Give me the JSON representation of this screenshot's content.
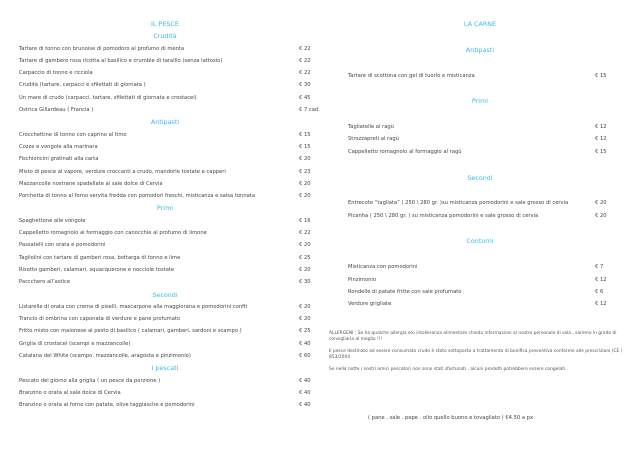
{
  "left": {
    "title": "IL PESCE",
    "sections": [
      {
        "heading": "Crudità",
        "items": [
          {
            "name": "Tartare di tonno con brunoise di pomodoro al profumo di menta",
            "price": "€ 22"
          },
          {
            "name": "Tartare di gambero rosa ricotta al basilico e crumble di taralllo (senza lattosio)",
            "price": "€ 22"
          },
          {
            "name": "Carpaccio di tonno e ricciola",
            "price": "€ 22"
          },
          {
            "name": "Crudità (tartare, carpacci e sfilettati di giornata )",
            "price": "€ 30"
          },
          {
            "name": "Un mare di crudo (carpacci, tartare, sfilettati di giornata e crostacei)",
            "price": "€ 45"
          },
          {
            "name": "Ostrica  Gillardeau ( Francia )",
            "price": "€ 7 cad."
          }
        ]
      },
      {
        "heading": "Antipasti",
        "items": [
          {
            "name": "Crocchettine di tonno con caprino al timo",
            "price": "€ 15"
          },
          {
            "name": "Cozze e vongole alla marinara",
            "price": "€ 15"
          },
          {
            "name": "Fischioncini gratinati alla carta",
            "price": "€ 20"
          },
          {
            "name": "Misto di pesce al vapore, verdure croccanti a crudo, mandorle tostate e capperi",
            "price": "€ 23"
          },
          {
            "name": "Mazzancolle nostrane spadellate al sale dolce di Cervia",
            "price": "€ 20"
          },
          {
            "name": "Porchetta di tonno al forno servita fredda con pomodori freschi, misticanza e salsa tonnata",
            "price": "€ 20"
          }
        ]
      },
      {
        "heading": "Primi",
        "items": [
          {
            "name": "Spaghettone alle vongole",
            "price": "€ 16"
          },
          {
            "name": "Cappelletto romagnolo al formaggio con canocchie al profumo di limone",
            "price": "€ 22"
          },
          {
            "name": "Passatelli con orata e pomodorini",
            "price": "€ 20"
          },
          {
            "name": "Tagliolini con tartare di gamberi rosa, bottarga di tonno e lime",
            "price": "€ 25"
          },
          {
            "name": "Risotto gamberi, calamari, squacquerone e nocciole tostate",
            "price": "€ 20"
          },
          {
            "name": "Paccchero all’astice",
            "price": "€ 30"
          }
        ]
      },
      {
        "heading": "Secondi",
        "items": [
          {
            "name": "Listarelle di orata con crema di piselli, mascarpone alla maggiorana e pomodorini confit",
            "price": "€ 20"
          },
          {
            "name": "Trancio di ombrina con caponata di verdure e pane profumato",
            "price": "€ 20"
          },
          {
            "name": "Fritto misto con maionese al pesto di basilico ( calamari, gamberi, sardoni e scampo )",
            "price": "€ 25"
          },
          {
            "name": "Griglia di crostacei (scampi e mazzancolle)",
            "price": "€ 40"
          },
          {
            "name": "Catalana del White (scampo, mazzancolle, aragosta e pinzimonio)",
            "price": "€ 60"
          }
        ]
      },
      {
        "heading": "I pescati",
        "items": [
          {
            "name": "Pescato del giorno alla griglia ( un pesce da porzione )",
            "price": "€ 40"
          },
          {
            "name": "Branzino o orata al sale dolce di Cervia",
            "price": "€ 40"
          },
          {
            "name": "Branzino o orata al forno con patate, olive taggiasche e pomodorini",
            "price": "€ 40"
          }
        ]
      }
    ]
  },
  "right": {
    "title": "LA CARNE",
    "sections": [
      {
        "heading": "Antipasti",
        "items": [
          {
            "name": "Tartare di scottona con gel di tuorlo e misticanza",
            "price": "€ 15"
          }
        ]
      },
      {
        "heading": "Primi",
        "items": [
          {
            "name": "Tagliatelle al ragù",
            "price": "€ 12"
          },
          {
            "name": "Strozzapreti al ragù",
            "price": "€ 12"
          },
          {
            "name": "Cappelletto romagnolo al formaggio al ragù",
            "price": "€ 15"
          }
        ]
      },
      {
        "heading": "Secondi",
        "items": [
          {
            "name": "Entrecote “tagliata” ( 250 \\ 280 gr. )su misticanza pomodorini e sale grosso di cervia",
            "price": "€ 20"
          },
          {
            "name": "Picanha ( 250 \\ 280 gr. ) su misticanza pomodorini e sale grosso di cervia",
            "price": "€ 20"
          }
        ]
      },
      {
        "heading": "Contorni",
        "items": [
          {
            "name": "Misticanza con pomodorini",
            "price": "€ 7"
          },
          {
            "name": "Pinzimonio",
            "price": "€ 12"
          },
          {
            "name": "Rondelle di patate fritte con sale profumato",
            "price": "€ 6"
          },
          {
            "name": "Verdure grigliate",
            "price": "€ 12"
          }
        ]
      }
    ]
  },
  "notes": [
    "ALLERGENI : Se ha qualche allergia e/o intolleranza alimentare chieda informazioni al nostro personale di sala , saremo in grado di consigliarla al meglio !!!",
    "Il pesce destinato ad essere consumato crudo è stato sottoposto a trattamento di bonifica preventiva conforme alle prescrizioni (CE ) 853/2004",
    "Se nella notte i nostri amici pescatori non sono stati sfortunati , alcuni prodotti potrebbero essere congelati."
  ],
  "footer": "( pane . sale . pepe . olio quello buono e tovagliato ) €4.50 a px",
  "colors": {
    "heading": "#3db9ee",
    "text": "#444444"
  }
}
